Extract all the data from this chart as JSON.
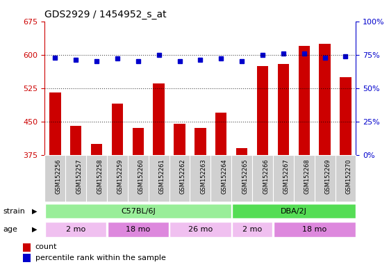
{
  "title": "GDS2929 / 1454952_s_at",
  "samples": [
    "GSM152256",
    "GSM152257",
    "GSM152258",
    "GSM152259",
    "GSM152260",
    "GSM152261",
    "GSM152262",
    "GSM152263",
    "GSM152264",
    "GSM152265",
    "GSM152266",
    "GSM152267",
    "GSM152268",
    "GSM152269",
    "GSM152270"
  ],
  "bar_values": [
    515,
    440,
    400,
    490,
    435,
    535,
    445,
    435,
    470,
    390,
    575,
    580,
    620,
    625,
    550
  ],
  "percentile_values": [
    73,
    71,
    70,
    72,
    70,
    75,
    70,
    71,
    72,
    70,
    75,
    76,
    76,
    73,
    74
  ],
  "ylim_left": [
    375,
    675
  ],
  "ylim_right": [
    0,
    100
  ],
  "yticks_left": [
    375,
    450,
    525,
    600,
    675
  ],
  "yticks_right": [
    0,
    25,
    50,
    75,
    100
  ],
  "ytick_right_labels": [
    "0%",
    "25%",
    "50%",
    "75%",
    "100%"
  ],
  "bar_color": "#cc0000",
  "dot_color": "#0000cc",
  "axis_color_left": "#cc0000",
  "axis_color_right": "#0000cc",
  "bg_color": "#ffffff",
  "sample_area_color": "#d0d0d0",
  "strain_c57_color": "#99ee99",
  "strain_dba_color": "#55dd55",
  "age_light_color": "#f0c0f0",
  "age_dark_color": "#dd88dd",
  "legend_count_label": "count",
  "legend_pct_label": "percentile rank within the sample",
  "strain_label": "strain",
  "age_label": "age"
}
